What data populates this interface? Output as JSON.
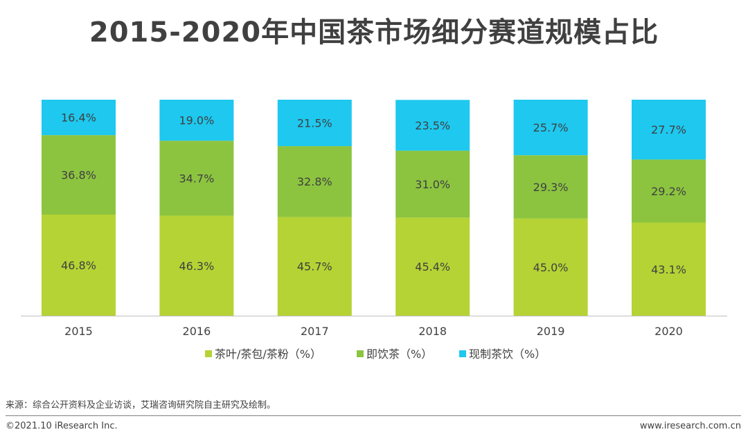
{
  "colors": {
    "tea_leaf": "#b5d334",
    "rtd_tea": "#8cc440",
    "fresh_tea": "#1ec8ef",
    "text": "#404040",
    "axis": "#bfbfbf"
  },
  "chart_data": {
    "type": "bar",
    "stacked": true,
    "title": "2015-2020年中国茶市场细分赛道规模占比",
    "categories": [
      "2015",
      "2016",
      "2017",
      "2018",
      "2019",
      "2020"
    ],
    "series": [
      {
        "name": "茶叶/茶包/茶粉（%）",
        "values": [
          46.8,
          46.3,
          45.7,
          45.4,
          45.0,
          43.1
        ],
        "labels": [
          "46.8%",
          "46.3%",
          "45.7%",
          "45.4%",
          "45.0%",
          "43.1%"
        ]
      },
      {
        "name": "即饮茶（%）",
        "values": [
          36.8,
          34.7,
          32.8,
          31.0,
          29.3,
          29.2
        ],
        "labels": [
          "36.8%",
          "34.7%",
          "32.8%",
          "31.0%",
          "29.3%",
          "29.2%"
        ]
      },
      {
        "name": "现制茶饮（%）",
        "values": [
          16.4,
          19.0,
          21.5,
          23.5,
          25.7,
          27.7
        ],
        "labels": [
          "16.4%",
          "19.0%",
          "21.5%",
          "23.5%",
          "25.7%",
          "27.7%"
        ]
      }
    ],
    "ylim": [
      0,
      100
    ],
    "legend": "bottom"
  },
  "footer": {
    "source": "来源：综合公开资料及企业访谈，艾瑞咨询研究院自主研究及绘制。",
    "copyright": "©2021.10 iResearch Inc.",
    "website": "www.iresearch.com.cn"
  }
}
